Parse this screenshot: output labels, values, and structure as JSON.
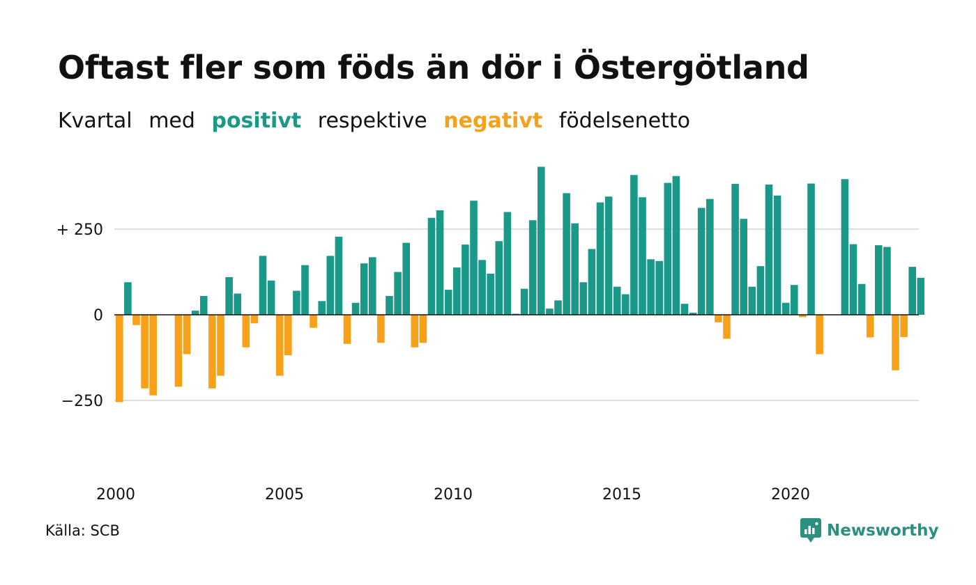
{
  "title": "Oftast fler som föds än dör i Östergötland",
  "subtitle": {
    "part1": "Kvartal",
    "part2": "med",
    "positive_word": "positivt",
    "part3": "respektive",
    "negative_word": "negativt",
    "part4": "födelsenetto"
  },
  "colors": {
    "positive": "#1a9988",
    "negative": "#f7a11a",
    "grid": "#dddddd",
    "text": "#111111"
  },
  "source": "Källa: SCB",
  "logo": {
    "text": "Newsworthy",
    "icon": "newsworthy-logo-icon",
    "color": "#2b9080"
  },
  "chart_data": {
    "type": "bar",
    "x_start_year": 2000,
    "x_tick_labels": [
      "2000",
      "2005",
      "2010",
      "2015",
      "2020"
    ],
    "y_tick_labels": [
      "+ 250",
      "0",
      "−250"
    ],
    "y_ticks": [
      250,
      0,
      -250
    ],
    "ylim": [
      -475,
      430
    ],
    "grid": true,
    "values": [
      -255,
      95,
      -30,
      -215,
      -235,
      0,
      0,
      -210,
      -115,
      12,
      55,
      -215,
      -178,
      110,
      62,
      -95,
      -25,
      172,
      100,
      -178,
      -118,
      70,
      145,
      -38,
      40,
      172,
      228,
      -85,
      35,
      150,
      168,
      -82,
      55,
      125,
      210,
      -95,
      -82,
      283,
      305,
      73,
      138,
      205,
      333,
      160,
      120,
      215,
      300,
      3,
      76,
      276,
      432,
      18,
      42,
      355,
      267,
      95,
      192,
      328,
      345,
      82,
      60,
      408,
      343,
      162,
      157,
      385,
      405,
      32,
      6,
      312,
      338,
      -22,
      -70,
      382,
      280,
      82,
      142,
      380,
      348,
      35,
      87,
      -7,
      383,
      -115,
      0,
      0,
      396,
      206,
      90,
      -66,
      203,
      198,
      -162,
      -65,
      140,
      108
    ]
  }
}
